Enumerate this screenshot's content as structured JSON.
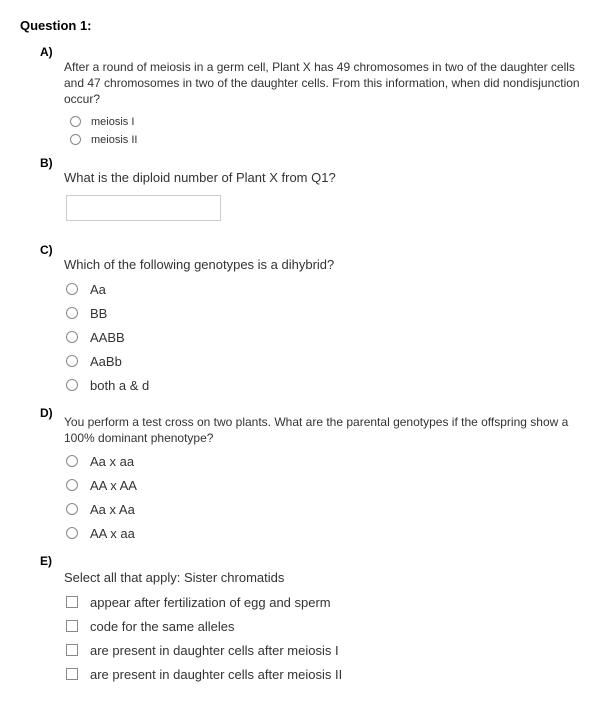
{
  "title": "Question 1:",
  "parts": {
    "a": {
      "label": "A)",
      "prompt": "After a round of meiosis in a germ cell, Plant X has 49 chromosomes in two of the daughter cells and 47 chromosomes in two of the daughter cells.  From this information, when did nondisjunction occur?",
      "options": [
        "meiosis I",
        "meiosis II"
      ]
    },
    "b": {
      "label": "B)",
      "prompt": "What is the diploid number of Plant X from Q1?"
    },
    "c": {
      "label": "C)",
      "prompt": "Which of the following genotypes is a dihybrid?",
      "options": [
        "Aa",
        "BB",
        "AABB",
        "AaBb",
        "both a & d"
      ]
    },
    "d": {
      "label": "D)",
      "prompt": "You perform a test cross on two plants.  What are the parental genotypes if the offspring show a 100% dominant phenotype?",
      "options": [
        "Aa x aa",
        "AA x AA",
        "Aa x Aa",
        "AA x aa"
      ]
    },
    "e": {
      "label": "E)",
      "prompt": "Select all that apply: Sister chromatids",
      "options": [
        "appear after fertilization of egg and sperm",
        "code for the same alleles",
        "are present in daughter cells after meiosis I",
        "are present in daughter cells after meiosis II"
      ]
    }
  }
}
